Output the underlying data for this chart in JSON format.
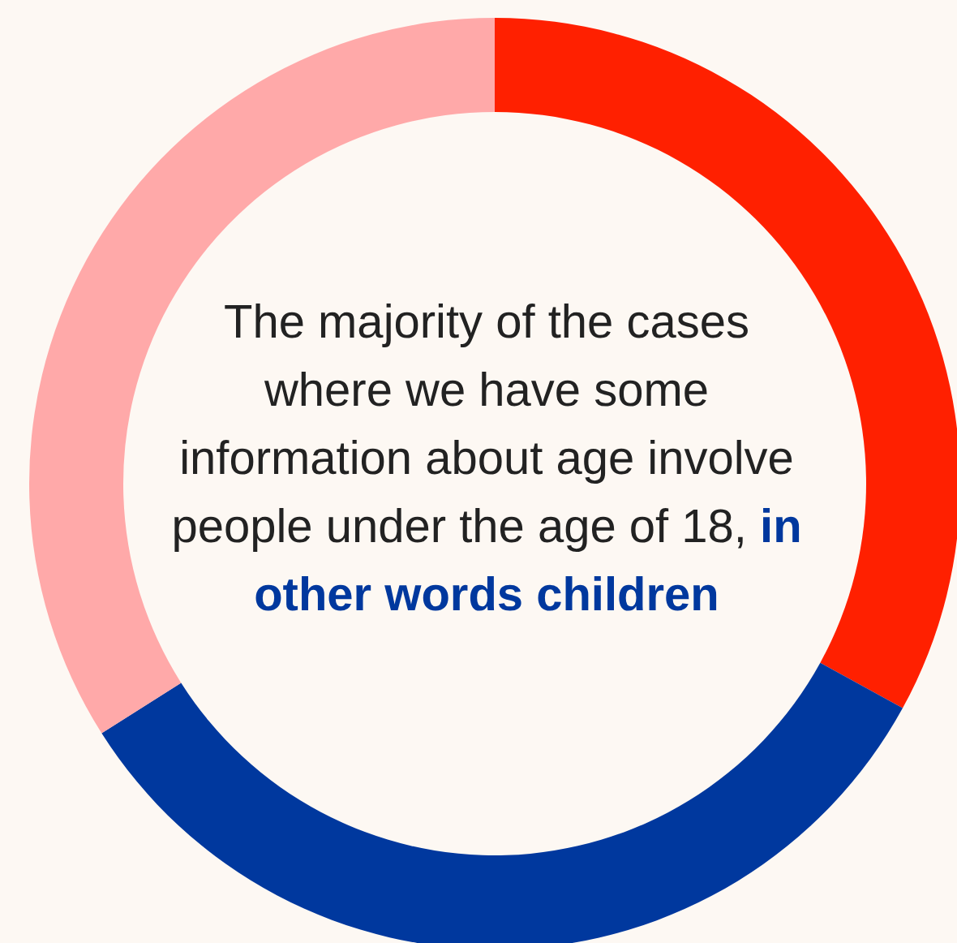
{
  "chart_data": {
    "type": "donut",
    "categories": [
      null,
      null,
      null
    ],
    "values": [
      33,
      33,
      34
    ],
    "colors": [
      "#ff2000",
      "#00389e",
      "#ffa9a9"
    ],
    "annotations": [
      "The majority of the cases where we have some information about age involve people under the age of 18,",
      "in other words children"
    ]
  }
}
